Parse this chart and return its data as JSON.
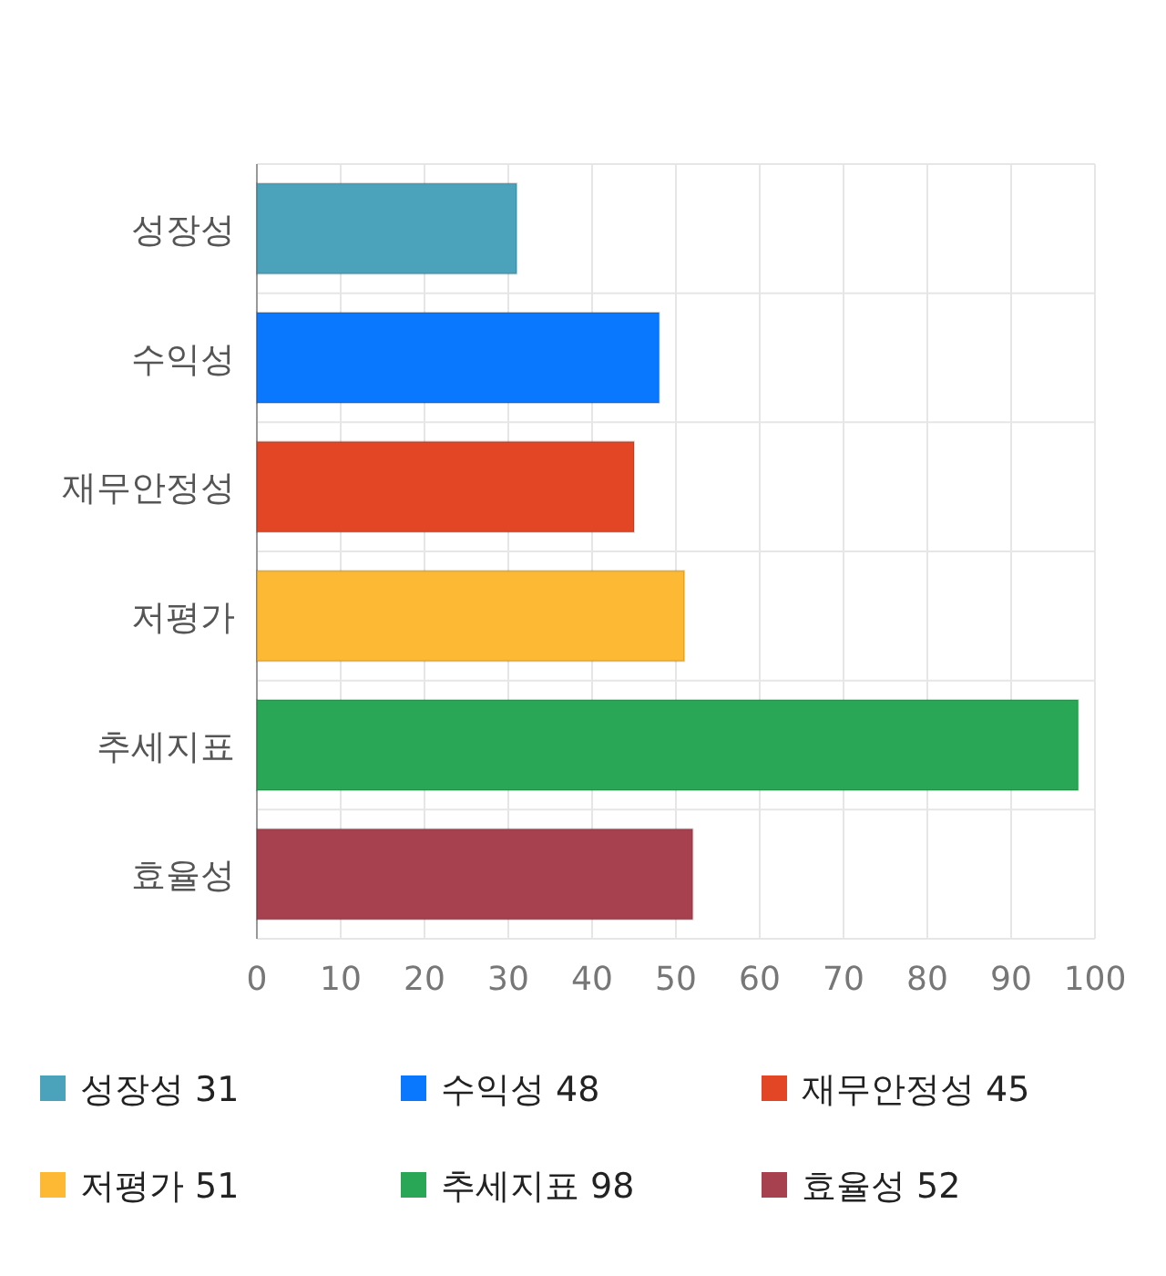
{
  "chart_data": {
    "type": "bar",
    "orientation": "horizontal",
    "stacked": true,
    "categories": [
      "성장성",
      "수익성",
      "재무안정성",
      "저평가",
      "추세지표",
      "효율성"
    ],
    "series": [
      {
        "name": "성장성 31",
        "color": "#4ba3bb",
        "values": [
          31,
          null,
          null,
          null,
          null,
          null
        ]
      },
      {
        "name": "수익성 48",
        "color": "#0a78fe",
        "values": [
          null,
          48,
          null,
          null,
          null,
          null
        ]
      },
      {
        "name": "재무안정성 45",
        "color": "#e24625",
        "values": [
          null,
          null,
          45,
          null,
          null,
          null
        ]
      },
      {
        "name": "저평가 51",
        "color": "#fdb933",
        "values": [
          null,
          null,
          null,
          51,
          null,
          null
        ]
      },
      {
        "name": "추세지표 98",
        "color": "#29a756",
        "values": [
          null,
          null,
          null,
          null,
          98,
          null
        ]
      },
      {
        "name": "효율성 52",
        "color": "#a8414f",
        "values": [
          null,
          null,
          null,
          null,
          null,
          52
        ]
      }
    ],
    "xlim": [
      0,
      100
    ],
    "xticks": [
      0,
      10,
      20,
      30,
      40,
      50,
      60,
      70,
      80,
      90,
      100
    ],
    "grid": true,
    "legend": "bottom"
  }
}
